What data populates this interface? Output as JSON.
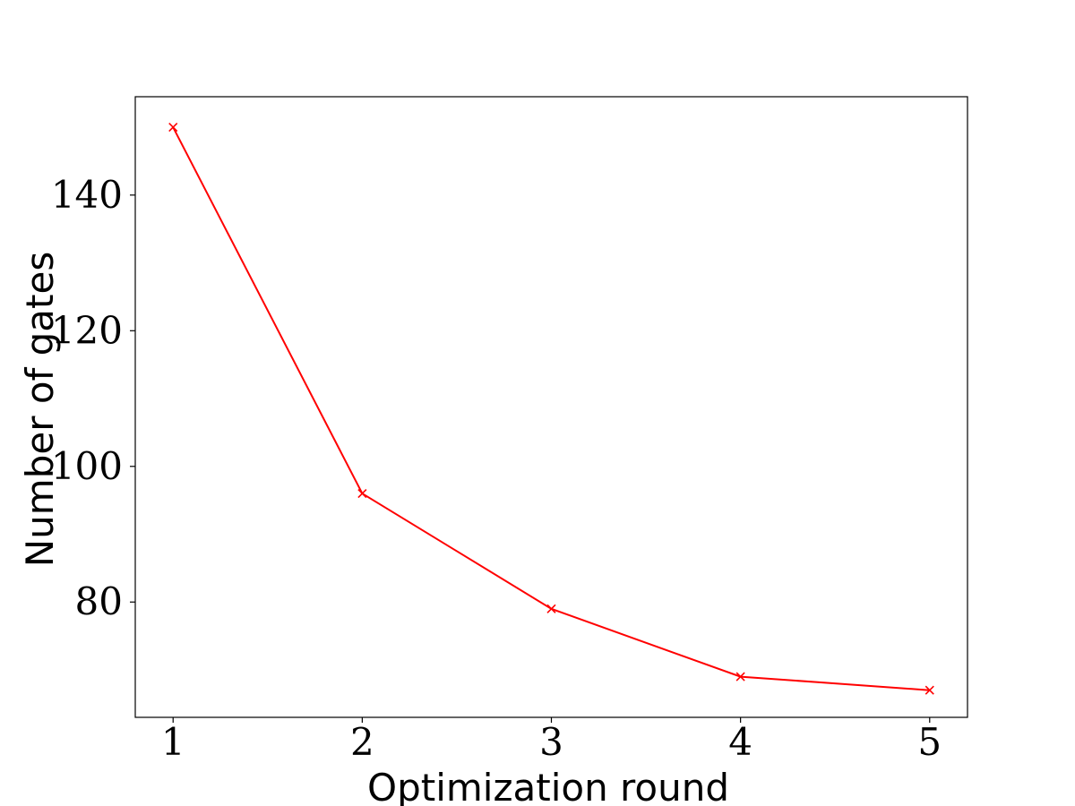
{
  "chart_data": {
    "type": "line",
    "title": "",
    "xlabel": "Optimization round",
    "ylabel": "Number of gates",
    "x": [
      1,
      2,
      3,
      4,
      5
    ],
    "series": [
      {
        "values": [
          150,
          96,
          79,
          69,
          67
        ],
        "color": "#ff0000",
        "marker": "x"
      }
    ],
    "xlim": [
      0.8,
      5.2
    ],
    "ylim": [
      63,
      154.5
    ],
    "xticks": [
      1,
      2,
      3,
      4,
      5
    ],
    "xtick_labels": [
      "1",
      "2",
      "3",
      "4",
      "5"
    ],
    "yticks": [
      80,
      100,
      120,
      140
    ],
    "ytick_labels": [
      "80",
      "100",
      "120",
      "140"
    ],
    "grid": false,
    "legend": "none"
  }
}
